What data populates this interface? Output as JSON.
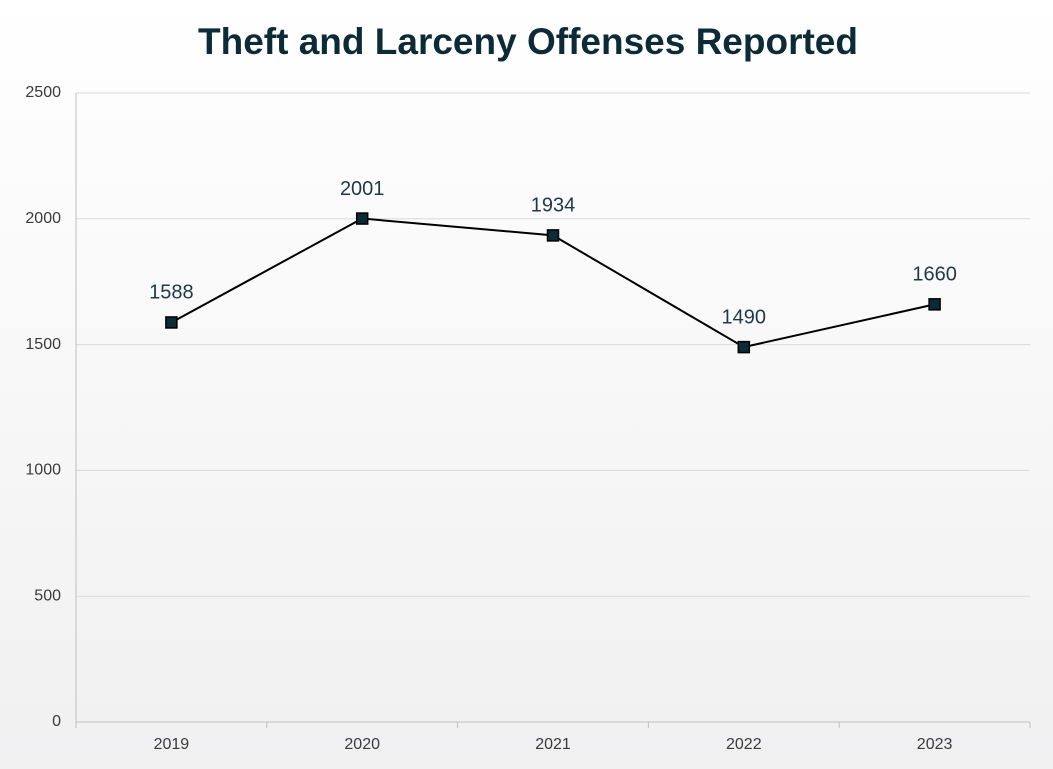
{
  "chart_data": {
    "type": "line",
    "title": "Theft and Larceny Offenses Reported",
    "categories": [
      "2019",
      "2020",
      "2021",
      "2022",
      "2023"
    ],
    "values": [
      1588,
      2001,
      1934,
      1490,
      1660
    ],
    "color": "#000000",
    "marker_color": "#0d2b36",
    "ylim": [
      0,
      2500
    ],
    "yticks": [
      0,
      500,
      1000,
      1500,
      2000,
      2500
    ],
    "grid": true
  }
}
